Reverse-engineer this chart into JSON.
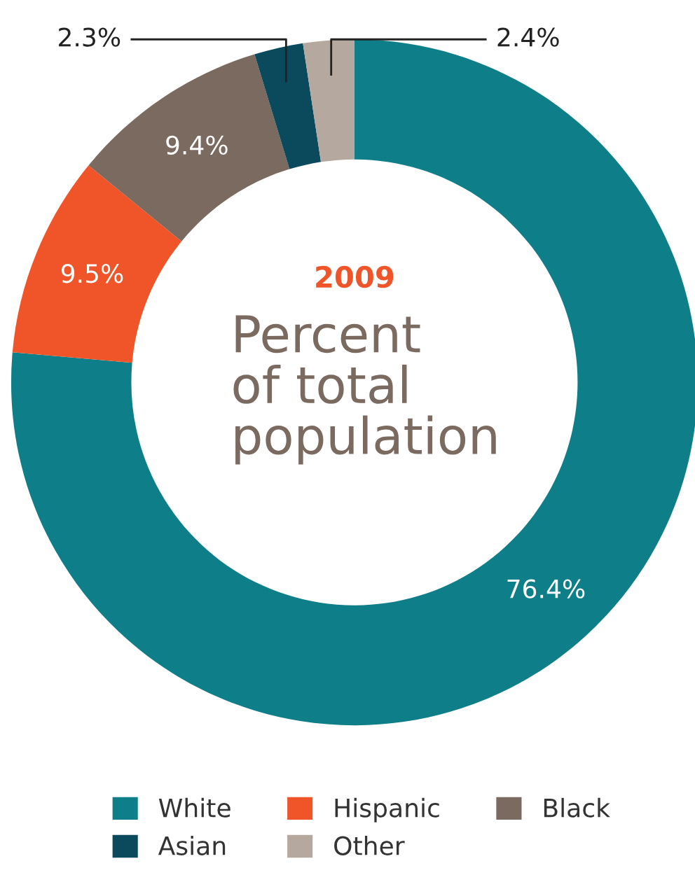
{
  "chart_data": {
    "type": "donut",
    "title": "2009",
    "subtitle": "Percent\nof total\npopulation",
    "categories": [
      "White",
      "Hispanic",
      "Black",
      "Asian",
      "Other"
    ],
    "values": [
      76.4,
      9.5,
      9.4,
      2.3,
      2.4
    ],
    "colors": [
      "#0e7f88",
      "#ef5528",
      "#7a6a60",
      "#0b4a5c",
      "#b5a89e"
    ],
    "value_labels": [
      "76.4%",
      "9.5%",
      "9.4%",
      "2.3%",
      "2.4%"
    ],
    "legend": "bottom"
  }
}
